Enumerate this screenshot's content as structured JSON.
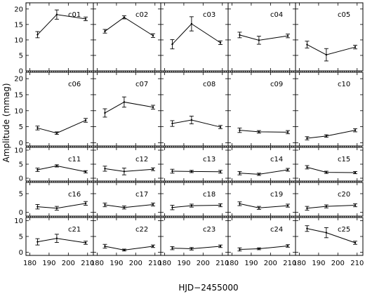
{
  "chart_data": {
    "type": "line",
    "ylabel": "Amplitude (mmag)",
    "xlabel": "HJD−2455000",
    "xlim": [
      178,
      213
    ],
    "xticks": [
      180,
      190,
      200,
      210
    ],
    "x": [
      184,
      194,
      209
    ],
    "rows": [
      {
        "ylim": [
          0,
          22
        ],
        "yticks": [
          0,
          5,
          10,
          15,
          20
        ]
      },
      {
        "ylim": [
          -1,
          22
        ],
        "yticks": [
          0,
          5,
          10,
          15,
          20
        ]
      },
      {
        "ylim": [
          -1,
          11
        ],
        "yticks": [
          0,
          5,
          10
        ]
      },
      {
        "ylim": [
          -1,
          8
        ],
        "yticks": [
          0,
          5
        ]
      },
      {
        "ylim": [
          -1,
          11
        ],
        "yticks": [
          0,
          5,
          10
        ]
      }
    ],
    "series": [
      {
        "name": "c01",
        "values": [
          11.7,
          18.2,
          16.8
        ],
        "errors": [
          1.0,
          1.5,
          0.6
        ]
      },
      {
        "name": "c02",
        "values": [
          12.8,
          17.3,
          11.4
        ],
        "errors": [
          0.6,
          0.5,
          0.6
        ]
      },
      {
        "name": "c03",
        "values": [
          8.6,
          15.2,
          9.1
        ],
        "errors": [
          1.5,
          2.3,
          0.6
        ]
      },
      {
        "name": "c04",
        "values": [
          11.6,
          9.9,
          11.3
        ],
        "errors": [
          0.9,
          1.3,
          0.6
        ]
      },
      {
        "name": "c05",
        "values": [
          8.5,
          5.2,
          7.7
        ],
        "errors": [
          1.1,
          2.0,
          0.6
        ]
      },
      {
        "name": "c06",
        "values": [
          4.6,
          3.0,
          7.0
        ],
        "errors": [
          0.6,
          0.4,
          0.6
        ]
      },
      {
        "name": "c07",
        "values": [
          9.3,
          12.7,
          11.1
        ],
        "errors": [
          1.3,
          1.6,
          0.6
        ]
      },
      {
        "name": "c08",
        "values": [
          6.0,
          7.1,
          4.9
        ],
        "errors": [
          0.9,
          1.2,
          0.5
        ]
      },
      {
        "name": "c09",
        "values": [
          3.9,
          3.4,
          3.3
        ],
        "errors": [
          0.7,
          0.4,
          0.5
        ]
      },
      {
        "name": "c10",
        "values": [
          1.4,
          2.1,
          3.9
        ],
        "errors": [
          0.5,
          0.4,
          0.5
        ]
      },
      {
        "name": "c11",
        "values": [
          3.0,
          4.4,
          2.3
        ],
        "errors": [
          0.6,
          0.4,
          0.4
        ]
      },
      {
        "name": "c12",
        "values": [
          3.4,
          2.4,
          3.2
        ],
        "errors": [
          0.9,
          1.2,
          0.5
        ]
      },
      {
        "name": "c13",
        "values": [
          2.5,
          2.4,
          2.3
        ],
        "errors": [
          0.7,
          0.4,
          0.5
        ]
      },
      {
        "name": "c14",
        "values": [
          1.8,
          1.4,
          3.0
        ],
        "errors": [
          0.6,
          0.4,
          0.5
        ]
      },
      {
        "name": "c15",
        "values": [
          3.9,
          2.1,
          2.0
        ],
        "errors": [
          0.6,
          0.4,
          0.4
        ]
      },
      {
        "name": "c16",
        "values": [
          1.5,
          1.1,
          2.4
        ],
        "errors": [
          0.6,
          0.5,
          0.5
        ]
      },
      {
        "name": "c17",
        "values": [
          2.0,
          1.3,
          2.1
        ],
        "errors": [
          0.5,
          0.4,
          0.4
        ]
      },
      {
        "name": "c18",
        "values": [
          1.3,
          1.8,
          1.9
        ],
        "errors": [
          0.6,
          0.4,
          0.4
        ]
      },
      {
        "name": "c19",
        "values": [
          2.3,
          1.2,
          1.8
        ],
        "errors": [
          0.5,
          0.4,
          0.4
        ]
      },
      {
        "name": "c20",
        "values": [
          1.1,
          1.6,
          1.9
        ],
        "errors": [
          0.5,
          0.4,
          0.4
        ]
      },
      {
        "name": "c21",
        "values": [
          3.3,
          4.4,
          3.0
        ],
        "errors": [
          1.0,
          1.3,
          0.5
        ]
      },
      {
        "name": "c22",
        "values": [
          1.9,
          0.7,
          1.9
        ],
        "errors": [
          0.6,
          0.3,
          0.4
        ]
      },
      {
        "name": "c23",
        "values": [
          1.3,
          1.1,
          1.9
        ],
        "errors": [
          0.5,
          0.4,
          0.4
        ]
      },
      {
        "name": "c24",
        "values": [
          0.9,
          1.1,
          2.0
        ],
        "errors": [
          0.5,
          0.3,
          0.4
        ]
      },
      {
        "name": "c25",
        "values": [
          7.5,
          6.2,
          3.0
        ],
        "errors": [
          0.9,
          1.6,
          0.5
        ]
      }
    ],
    "grid": false,
    "legend": "none"
  }
}
